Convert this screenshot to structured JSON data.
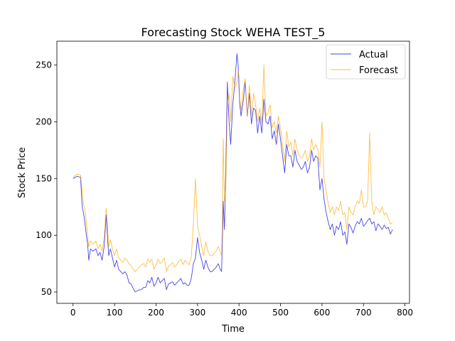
{
  "chart_data": {
    "type": "line",
    "title": "Forecasting Stock WEHA TEST_5",
    "xlabel": "Time",
    "ylabel": "Stock Price",
    "xlim": [
      -39,
      811
    ],
    "ylim": [
      40,
      271
    ],
    "xticks": [
      "0",
      "100",
      "200",
      "300",
      "400",
      "500",
      "600",
      "700",
      "800"
    ],
    "xtick_values": [
      0,
      100,
      200,
      300,
      400,
      500,
      600,
      700,
      800
    ],
    "yticks": [
      "50",
      "100",
      "150",
      "200",
      "250"
    ],
    "ytick_values": [
      50,
      100,
      150,
      200,
      250
    ],
    "grid": false,
    "legend_position": "top-right",
    "colors": {
      "actual": "#0000dd",
      "forecast": "#ffa500"
    },
    "series": [
      {
        "name": "Actual",
        "x": [
          0,
          10,
          18,
          22,
          25,
          28,
          32,
          35,
          38,
          42,
          48,
          55,
          60,
          65,
          70,
          75,
          80,
          83,
          86,
          90,
          95,
          100,
          105,
          110,
          115,
          120,
          125,
          130,
          135,
          140,
          145,
          150,
          155,
          160,
          165,
          170,
          175,
          180,
          185,
          190,
          195,
          200,
          205,
          210,
          215,
          220,
          225,
          230,
          235,
          240,
          245,
          250,
          255,
          260,
          265,
          270,
          275,
          280,
          285,
          290,
          295,
          300,
          305,
          310,
          315,
          320,
          325,
          330,
          335,
          340,
          345,
          350,
          355,
          358,
          360,
          362,
          365,
          368,
          372,
          376,
          380,
          385,
          390,
          395,
          398,
          400,
          402,
          405,
          410,
          415,
          420,
          425,
          430,
          435,
          440,
          445,
          450,
          455,
          460,
          465,
          470,
          475,
          480,
          485,
          490,
          495,
          500,
          505,
          510,
          515,
          520,
          525,
          530,
          535,
          540,
          545,
          550,
          555,
          560,
          565,
          570,
          575,
          580,
          585,
          590,
          595,
          600,
          605,
          610,
          615,
          620,
          625,
          630,
          635,
          640,
          645,
          650,
          655,
          660,
          665,
          670,
          675,
          680,
          685,
          690,
          695,
          700,
          705,
          710,
          715,
          720,
          725,
          730,
          735,
          740,
          745,
          750,
          755,
          760,
          765,
          770
        ],
        "y": [
          150,
          152,
          151,
          125,
          120,
          113,
          100,
          93,
          78,
          88,
          86,
          88,
          82,
          85,
          78,
          90,
          118,
          98,
          82,
          88,
          80,
          72,
          78,
          70,
          68,
          66,
          68,
          65,
          58,
          57,
          53,
          50,
          51,
          52,
          52,
          54,
          54,
          60,
          58,
          63,
          55,
          58,
          63,
          58,
          60,
          62,
          52,
          57,
          58,
          59,
          56,
          58,
          60,
          62,
          57,
          58,
          56,
          56,
          62,
          75,
          80,
          98,
          85,
          78,
          70,
          78,
          72,
          68,
          68,
          70,
          72,
          75,
          70,
          68,
          95,
          130,
          105,
          155,
          235,
          200,
          180,
          215,
          235,
          260,
          250,
          230,
          215,
          205,
          218,
          235,
          205,
          225,
          198,
          212,
          210,
          190,
          205,
          190,
          220,
          200,
          198,
          205,
          185,
          192,
          180,
          198,
          185,
          170,
          155,
          180,
          170,
          170,
          160,
          175,
          165,
          162,
          158,
          160,
          165,
          155,
          160,
          175,
          165,
          170,
          168,
          140,
          150,
          132,
          120,
          112,
          105,
          110,
          100,
          108,
          105,
          112,
          100,
          103,
          92,
          110,
          107,
          102,
          108,
          112,
          110,
          115,
          108,
          110,
          113,
          115,
          110,
          112,
          104,
          110,
          108,
          105,
          109,
          106,
          107,
          101,
          105
        ]
      },
      {
        "name": "Forecast",
        "x": [
          0,
          10,
          18,
          22,
          25,
          28,
          32,
          35,
          38,
          42,
          48,
          55,
          60,
          65,
          70,
          75,
          80,
          83,
          86,
          90,
          95,
          100,
          105,
          110,
          115,
          120,
          125,
          130,
          135,
          140,
          145,
          150,
          155,
          160,
          165,
          170,
          175,
          180,
          185,
          190,
          195,
          200,
          205,
          210,
          215,
          220,
          225,
          230,
          235,
          240,
          245,
          250,
          255,
          260,
          265,
          270,
          275,
          280,
          285,
          290,
          295,
          300,
          305,
          310,
          315,
          320,
          325,
          330,
          335,
          340,
          345,
          350,
          355,
          358,
          360,
          362,
          365,
          368,
          372,
          376,
          380,
          385,
          390,
          395,
          398,
          400,
          402,
          405,
          410,
          415,
          420,
          425,
          430,
          435,
          440,
          445,
          450,
          455,
          460,
          465,
          470,
          475,
          480,
          485,
          490,
          495,
          500,
          505,
          510,
          515,
          520,
          525,
          530,
          535,
          540,
          545,
          550,
          555,
          560,
          565,
          570,
          575,
          580,
          585,
          590,
          595,
          600,
          605,
          610,
          615,
          620,
          625,
          630,
          635,
          640,
          645,
          650,
          655,
          660,
          665,
          670,
          675,
          680,
          685,
          690,
          695,
          700,
          705,
          710,
          715,
          720,
          725,
          730,
          735,
          740,
          745,
          750,
          755,
          760,
          765,
          770
        ],
        "y": [
          151,
          154,
          153,
          140,
          128,
          124,
          112,
          100,
          90,
          95,
          92,
          95,
          88,
          92,
          86,
          98,
          124,
          108,
          90,
          96,
          88,
          82,
          88,
          80,
          78,
          76,
          80,
          78,
          75,
          73,
          70,
          68,
          70,
          72,
          74,
          75,
          72,
          79,
          76,
          79,
          70,
          74,
          79,
          75,
          77,
          80,
          68,
          73,
          74,
          76,
          72,
          74,
          77,
          79,
          74,
          78,
          76,
          74,
          81,
          110,
          150,
          108,
          100,
          90,
          82,
          94,
          86,
          82,
          82,
          84,
          86,
          90,
          85,
          82,
          115,
          185,
          130,
          140,
          210,
          225,
          200,
          240,
          230,
          235,
          245,
          240,
          220,
          210,
          228,
          238,
          205,
          232,
          205,
          225,
          215,
          200,
          212,
          198,
          250,
          205,
          208,
          215,
          195,
          200,
          190,
          205,
          195,
          180,
          165,
          192,
          178,
          182,
          170,
          185,
          175,
          170,
          168,
          170,
          175,
          165,
          170,
          185,
          175,
          180,
          176,
          160,
          200,
          150,
          140,
          128,
          120,
          125,
          118,
          125,
          122,
          130,
          118,
          120,
          105,
          125,
          120,
          118,
          125,
          130,
          128,
          140,
          125,
          125,
          130,
          190,
          130,
          118,
          125,
          123,
          120,
          125,
          118,
          120,
          115,
          110,
          111
        ]
      }
    ]
  }
}
